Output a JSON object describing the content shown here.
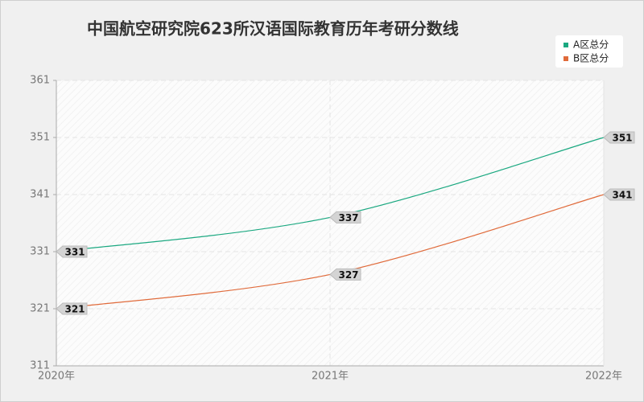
{
  "chart_data": {
    "type": "line",
    "title": "中国航空研究院623所汉语国际教育历年考研分数线",
    "categories": [
      "2020年",
      "2021年",
      "2022年"
    ],
    "series": [
      {
        "name": "A区总分",
        "color": "#1aa880",
        "values": [
          331,
          337,
          351
        ]
      },
      {
        "name": "B区总分",
        "color": "#e06a3a",
        "values": [
          321,
          327,
          341
        ]
      }
    ],
    "ylim": [
      311,
      361
    ],
    "yticks": [
      311,
      321,
      331,
      341,
      351,
      361
    ],
    "grid": true,
    "legend": "top-right"
  }
}
